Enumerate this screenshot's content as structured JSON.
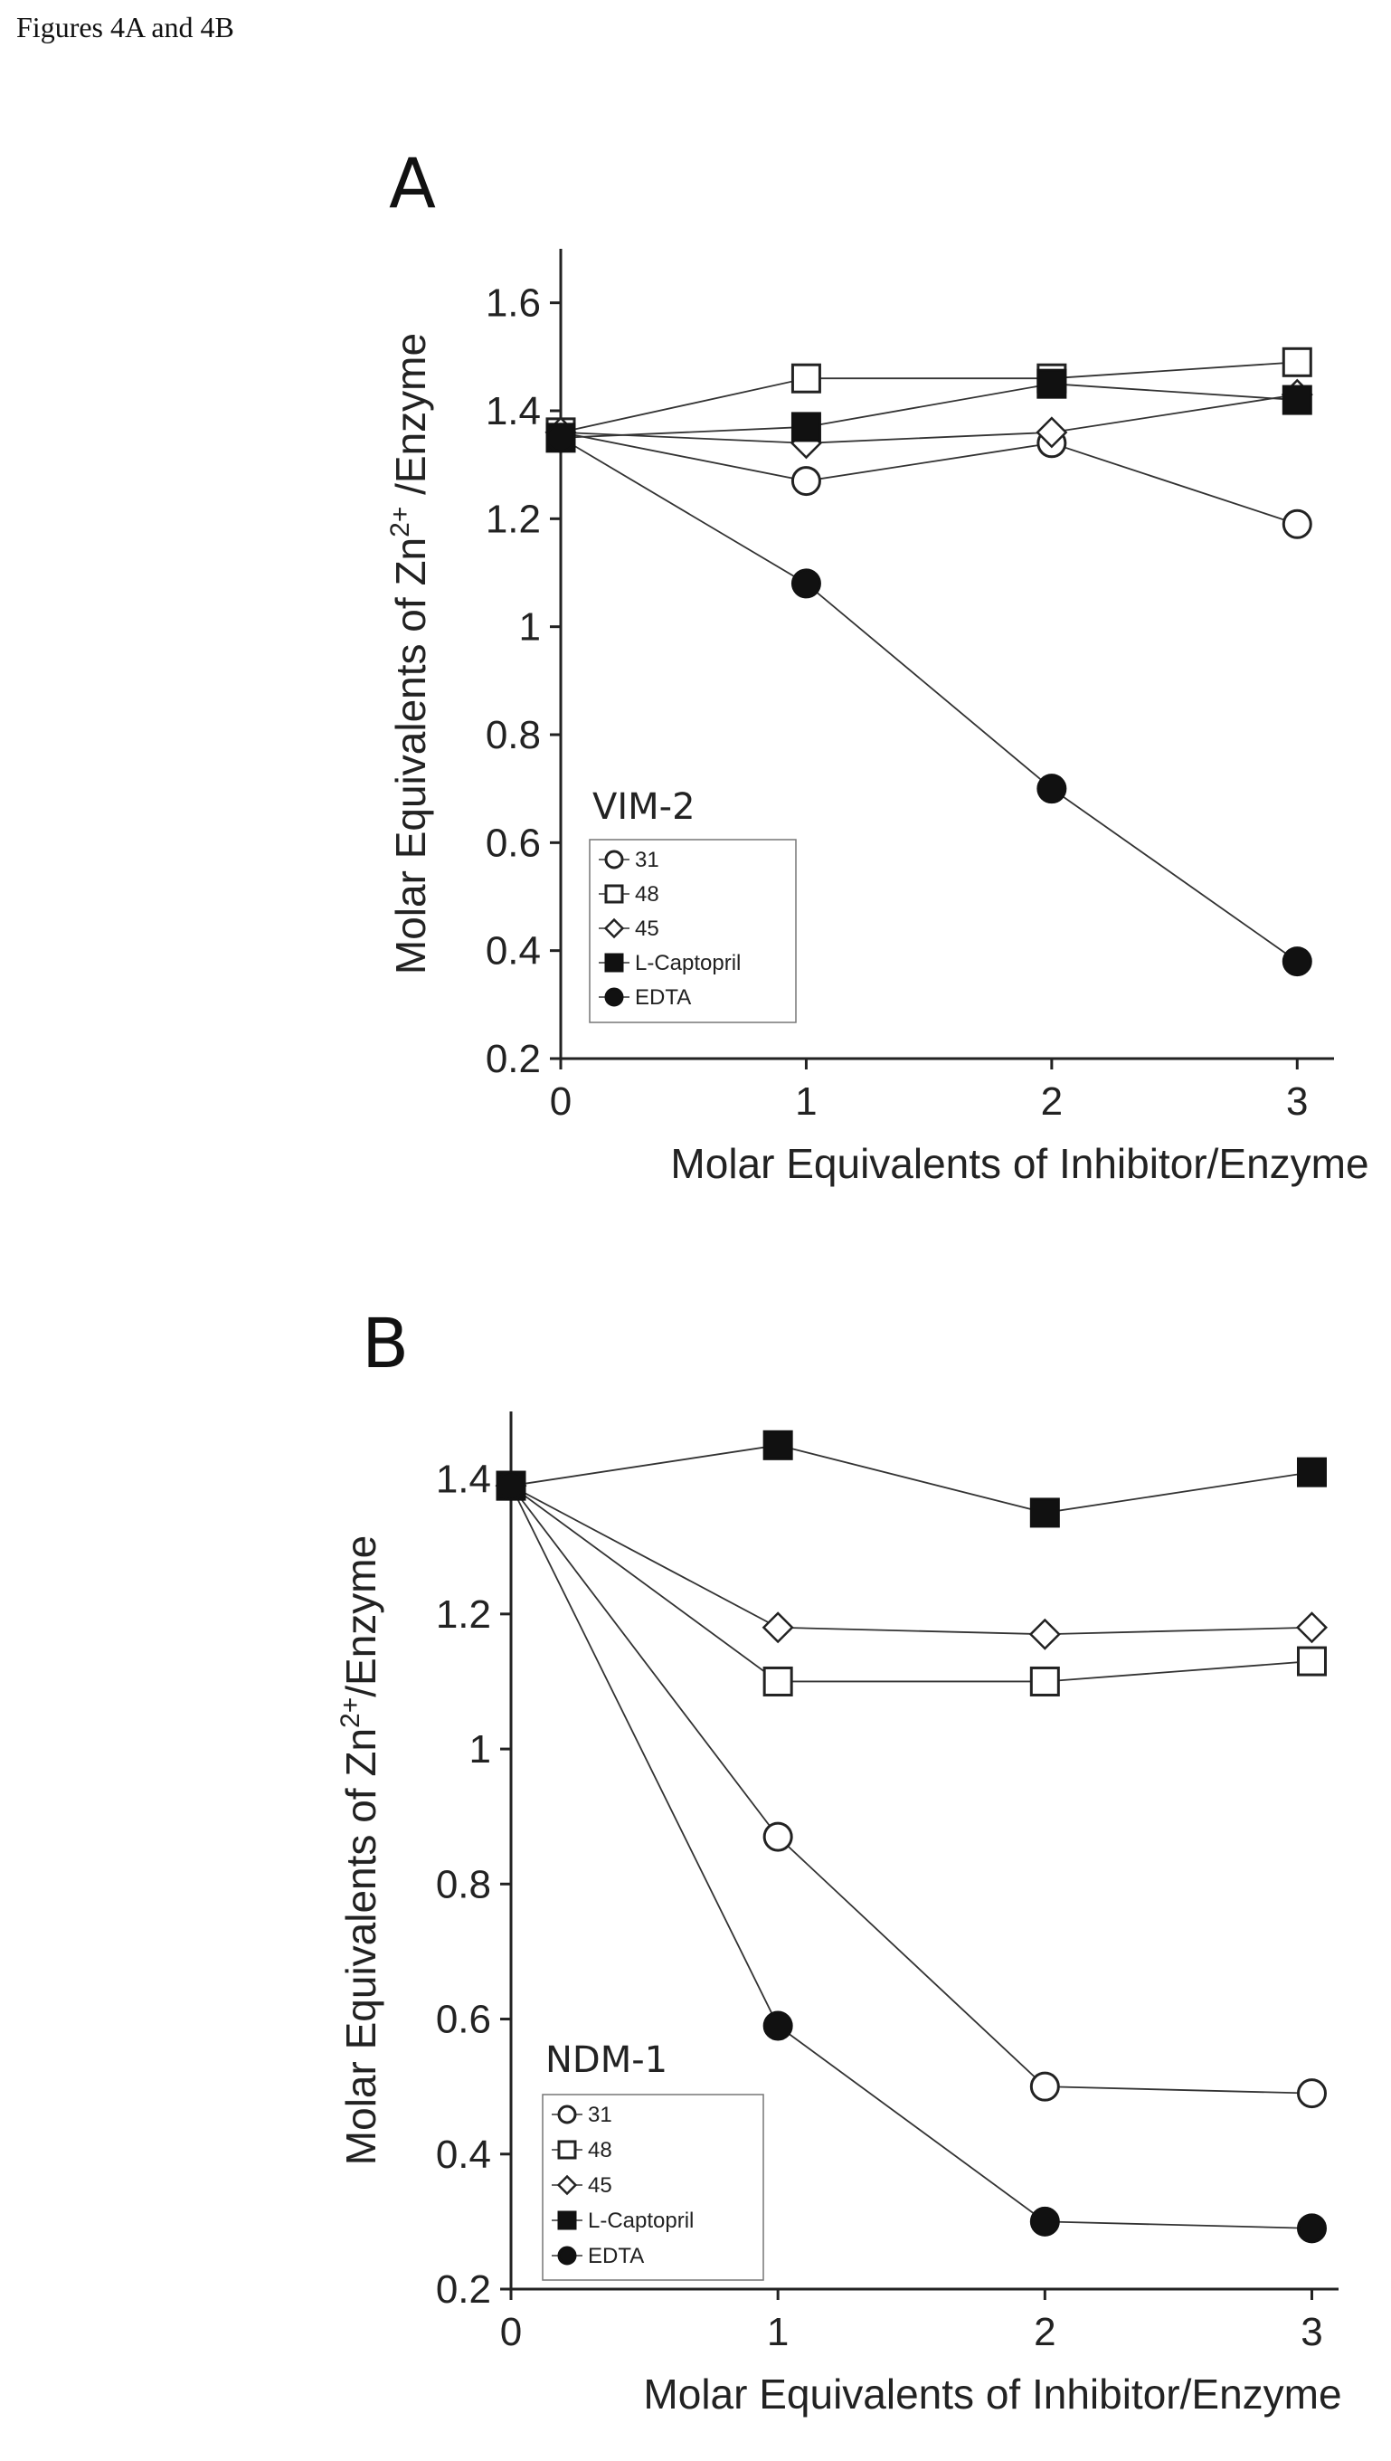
{
  "header": {
    "text": "Figures 4A and 4B"
  },
  "chart_data": [
    {
      "type": "line",
      "panel_label": "A",
      "enzyme": "VIM-2",
      "xlabel": "Molar Equivalents of Inhibitor/Enzyme",
      "ylabel_main": "Molar Equivalents of Zn",
      "ylabel_sup": "2+",
      "ylabel_tail": " /Enzyme",
      "xlim": [
        0,
        3.15
      ],
      "ylim": [
        0.2,
        1.7
      ],
      "x_ticks": [
        0,
        1,
        2,
        3
      ],
      "x_tick_labels": [
        "0",
        "1",
        "2",
        "3"
      ],
      "y_ticks": [
        0.2,
        0.4,
        0.6,
        0.8,
        1.0,
        1.2,
        1.4,
        1.6
      ],
      "y_tick_labels": [
        "0.2",
        "0.4",
        "0.6",
        "0.8",
        "1",
        "1.2",
        "1.4",
        "1.6"
      ],
      "x": [
        0,
        1,
        2,
        3
      ],
      "legend_position": "bottom-left",
      "grid": false,
      "series": [
        {
          "name": "31",
          "marker": "circle-open",
          "values": [
            1.36,
            1.27,
            1.34,
            1.19
          ]
        },
        {
          "name": "48",
          "marker": "square-open",
          "values": [
            1.36,
            1.46,
            1.46,
            1.49
          ]
        },
        {
          "name": "45",
          "marker": "diamond-open",
          "values": [
            1.36,
            1.34,
            1.36,
            1.43
          ]
        },
        {
          "name": "L-Captopril",
          "marker": "square-filled",
          "values": [
            1.35,
            1.37,
            1.45,
            1.42
          ]
        },
        {
          "name": "EDTA",
          "marker": "circle-filled",
          "values": [
            1.35,
            1.08,
            0.7,
            0.38
          ]
        }
      ]
    },
    {
      "type": "line",
      "panel_label": "B",
      "enzyme": "NDM-1",
      "xlabel": "Molar Equivalents of Inhibitor/Enzyme",
      "ylabel_main": "Molar Equivalents of Zn",
      "ylabel_sup": "2+",
      "ylabel_tail": "/Enzyme",
      "xlim": [
        0,
        3.1
      ],
      "ylim": [
        0.2,
        1.5
      ],
      "x_ticks": [
        0,
        1,
        2,
        3
      ],
      "x_tick_labels": [
        "0",
        "1",
        "2",
        "3"
      ],
      "y_ticks": [
        0.2,
        0.4,
        0.6,
        0.8,
        1.0,
        1.2,
        1.4
      ],
      "y_tick_labels": [
        "0.2",
        "0.4",
        "0.6",
        "0.8",
        "1",
        "1.2",
        "1.4"
      ],
      "x": [
        0,
        1,
        2,
        3
      ],
      "legend_position": "bottom-left",
      "grid": false,
      "series": [
        {
          "name": "31",
          "marker": "circle-open",
          "values": [
            1.39,
            0.87,
            0.5,
            0.49
          ]
        },
        {
          "name": "48",
          "marker": "square-open",
          "values": [
            1.39,
            1.1,
            1.1,
            1.13
          ]
        },
        {
          "name": "45",
          "marker": "diamond-open",
          "values": [
            1.39,
            1.18,
            1.17,
            1.18
          ]
        },
        {
          "name": "L-Captopril",
          "marker": "square-filled",
          "values": [
            1.39,
            1.45,
            1.35,
            1.41
          ]
        },
        {
          "name": "EDTA",
          "marker": "circle-filled",
          "values": [
            1.39,
            0.59,
            0.3,
            0.29
          ]
        }
      ]
    }
  ]
}
